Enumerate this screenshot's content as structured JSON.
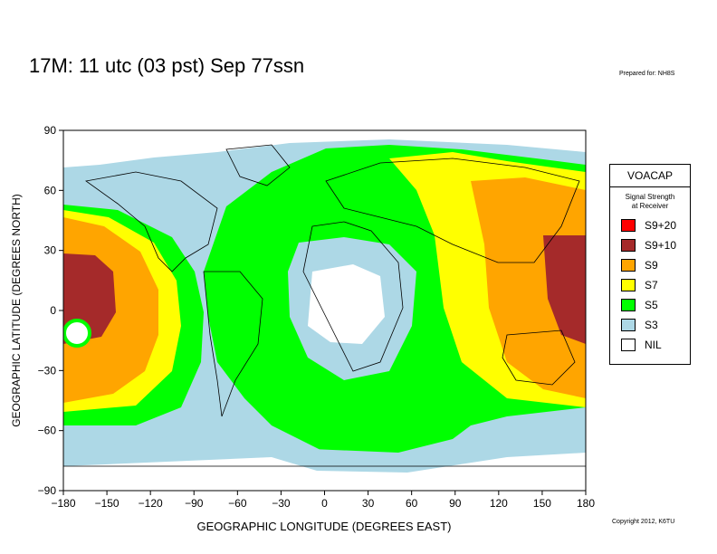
{
  "title": "17M:  11 utc (03 pst) Sep 77ssn",
  "prepared_for": "Prepared for: NH8S",
  "copyright": "Copyright 2012, K6TU",
  "map": {
    "x_axis_label": "GEOGRAPHIC LONGITUDE (DEGREES EAST)",
    "y_axis_label": "GEOGRAPHIC LATITUDE (DEGREES NORTH)",
    "x_ticks": [
      "−180",
      "−150",
      "−120",
      "−90",
      "−60",
      "−30",
      "0",
      "30",
      "60",
      "90",
      "120",
      "150",
      "180"
    ],
    "y_ticks": [
      "90",
      "60",
      "30",
      "0",
      "−30",
      "−60",
      "−90"
    ]
  },
  "legend": {
    "title": "VOACAP",
    "subtitle_line1": "Signal Strength",
    "subtitle_line2": "at Receiver",
    "items": [
      {
        "label": "S9+20",
        "color": "#ff0000"
      },
      {
        "label": "S9+10",
        "color": "#a52a2a"
      },
      {
        "label": "S9",
        "color": "#ffa500"
      },
      {
        "label": "S7",
        "color": "#ffff00"
      },
      {
        "label": "S5",
        "color": "#00ff00"
      },
      {
        "label": "S3",
        "color": "#add8e6"
      },
      {
        "label": "NIL",
        "color": "#ffffff"
      }
    ]
  }
}
